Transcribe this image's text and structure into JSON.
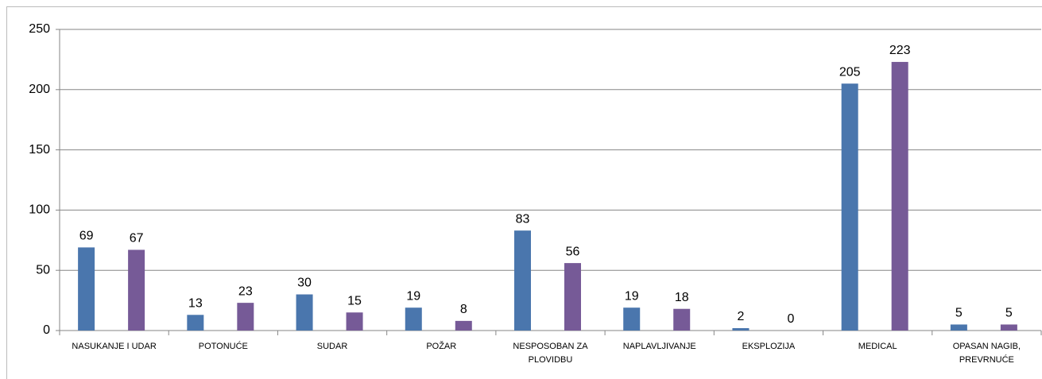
{
  "chart_data": {
    "type": "bar",
    "categories": [
      "NASUKANJE I UDAR",
      "POTONUĆE",
      "SUDAR",
      "POŽAR",
      "NESPOSOBAN ZA PLOVIDBU",
      "NAPLAVLJIVANJE",
      "EKSPLOZIJA",
      "MEDICAL",
      "OPASAN NAGIB, PREVRNUĆE"
    ],
    "series": [
      {
        "color": "#4a76ad",
        "values": [
          69,
          13,
          30,
          19,
          83,
          19,
          2,
          205,
          5
        ]
      },
      {
        "color": "#765a97",
        "values": [
          67,
          23,
          15,
          8,
          56,
          18,
          0,
          223,
          5
        ]
      }
    ],
    "ylim": [
      0,
      250
    ],
    "yticks": [
      0,
      50,
      100,
      150,
      200,
      250
    ],
    "grid": true
  }
}
